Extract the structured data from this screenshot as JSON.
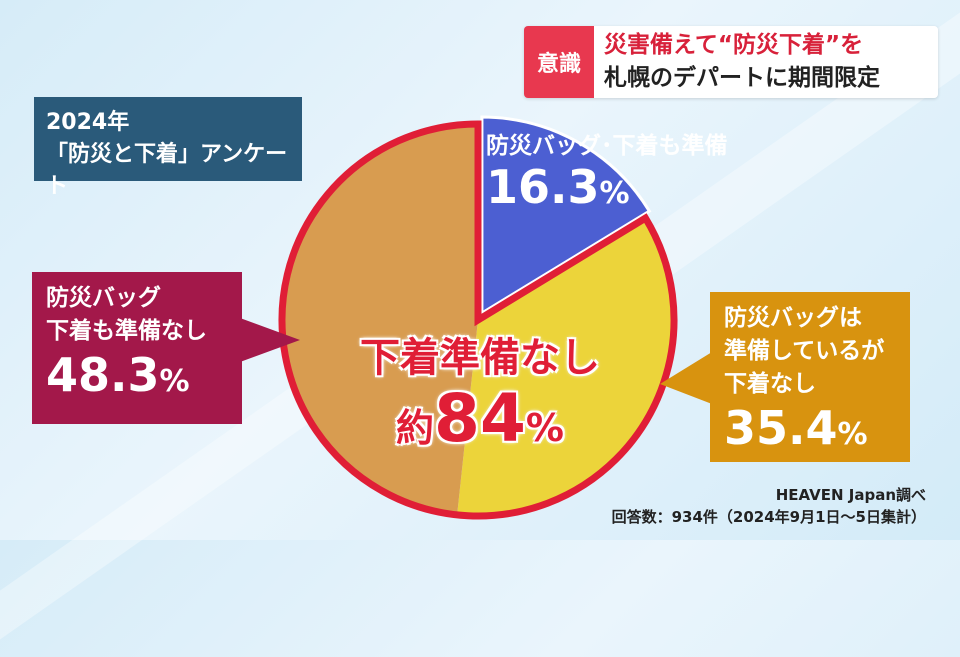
{
  "headline": {
    "tag": "意識",
    "line1": "災害備えて“防災下着”を",
    "line2": "札幌のデパートに期間限定"
  },
  "survey": {
    "line1": "2024年",
    "line2": "「防災と下着」アンケート"
  },
  "chart_data": {
    "type": "pie",
    "slices": [
      {
        "label": "防災バッグ･下着も準備",
        "value": 16.3,
        "color": "#4c5fd2"
      },
      {
        "label": "防災バッグは準備しているが下着なし",
        "value": 35.4,
        "color": "#ecd43a"
      },
      {
        "label": "防災バッグ下着も準備なし",
        "value": 48.3,
        "color": "#d89c50"
      }
    ],
    "outline_color": "#e01e36"
  },
  "callouts": {
    "blue": {
      "line1": "防災バッグ･下着も準備",
      "value": "16.3",
      "unit": "%"
    },
    "right": {
      "line1": "防災バッグは",
      "line2": "準備しているが",
      "line3": "下着なし",
      "value": "35.4",
      "unit": "%"
    },
    "left": {
      "line1": "防災バッグ",
      "line2": "下着も準備なし",
      "value": "48.3",
      "unit": "%"
    }
  },
  "center": {
    "line1": "下着準備なし",
    "prefix": "約",
    "value": "84",
    "unit": "%"
  },
  "source": {
    "line1": "HEAVEN Japan調べ",
    "line2": "回答数：934件（2024年9月1日〜5日集計）"
  }
}
